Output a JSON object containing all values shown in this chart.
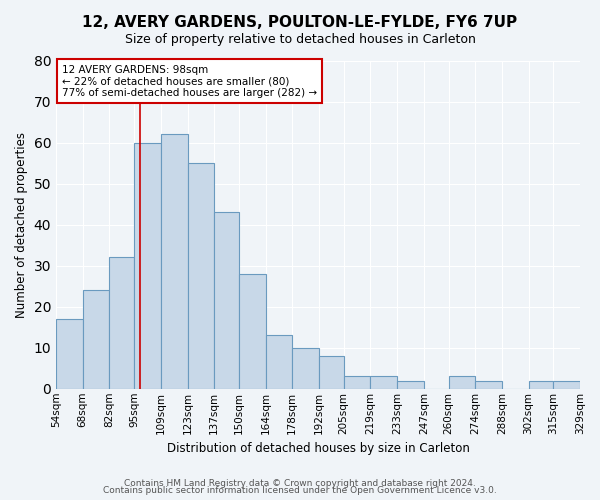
{
  "title": "12, AVERY GARDENS, POULTON-LE-FYLDE, FY6 7UP",
  "subtitle": "Size of property relative to detached houses in Carleton",
  "xlabel": "Distribution of detached houses by size in Carleton",
  "ylabel": "Number of detached properties",
  "bar_color": "#c8d8e8",
  "bar_edge_color": "#6a9abf",
  "background_color": "#f0f4f8",
  "bins": [
    54,
    68,
    82,
    95,
    109,
    123,
    137,
    150,
    164,
    178,
    192,
    205,
    219,
    233,
    247,
    260,
    274,
    288,
    302,
    315,
    329
  ],
  "tick_labels": [
    "54sqm",
    "68sqm",
    "82sqm",
    "95sqm",
    "109sqm",
    "123sqm",
    "137sqm",
    "150sqm",
    "164sqm",
    "178sqm",
    "192sqm",
    "205sqm",
    "219sqm",
    "233sqm",
    "247sqm",
    "260sqm",
    "274sqm",
    "288sqm",
    "302sqm",
    "315sqm",
    "329sqm"
  ],
  "values": [
    17,
    24,
    32,
    60,
    62,
    55,
    43,
    28,
    13,
    10,
    8,
    3,
    3,
    2,
    0,
    3,
    2,
    0,
    2,
    2
  ],
  "vline_x": 98,
  "annotation_title": "12 AVERY GARDENS: 98sqm",
  "annotation_line1": "← 22% of detached houses are smaller (80)",
  "annotation_line2": "77% of semi-detached houses are larger (282) →",
  "annotation_box_color": "#ffffff",
  "annotation_box_edge_color": "#cc0000",
  "vline_color": "#cc0000",
  "ylim": [
    0,
    80
  ],
  "yticks": [
    0,
    10,
    20,
    30,
    40,
    50,
    60,
    70,
    80
  ],
  "footer1": "Contains HM Land Registry data © Crown copyright and database right 2024.",
  "footer2": "Contains public sector information licensed under the Open Government Licence v3.0."
}
